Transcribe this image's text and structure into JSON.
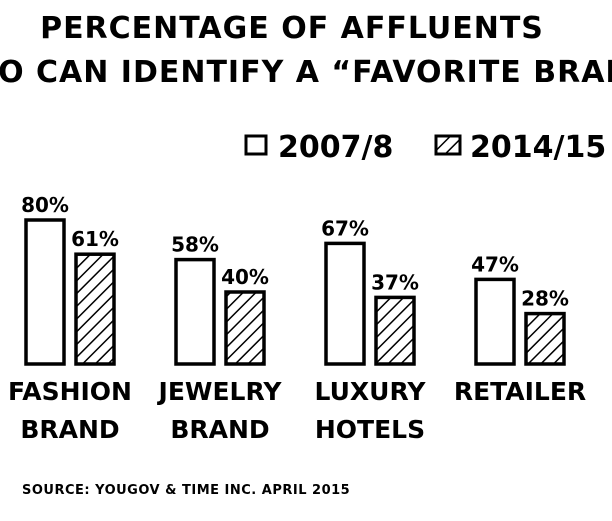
{
  "chart_data": {
    "type": "bar",
    "title": [
      "PERCENTAGE OF AFFLUENTS",
      "WHO CAN IDENTIFY A “FAVORITE BRAND”"
    ],
    "categories": [
      [
        "FASHION",
        "BRAND"
      ],
      [
        "JEWELRY",
        "BRAND"
      ],
      [
        "LUXURY",
        "HOTELS"
      ],
      [
        "RETAILER"
      ]
    ],
    "series": [
      {
        "name": "2007/8",
        "values": [
          80,
          58,
          67,
          47
        ],
        "labels": [
          "80%",
          "58%",
          "67%",
          "47%"
        ],
        "fill": "plain"
      },
      {
        "name": "2014/15",
        "values": [
          61,
          40,
          37,
          28
        ],
        "labels": [
          "61%",
          "40%",
          "37%",
          "28%"
        ],
        "fill": "hatched"
      }
    ],
    "ylim": [
      0,
      100
    ],
    "legend_position": "top-right",
    "grid": false,
    "source": "SOURCE: YOUGOV & TIME INC. APRIL 2015"
  }
}
